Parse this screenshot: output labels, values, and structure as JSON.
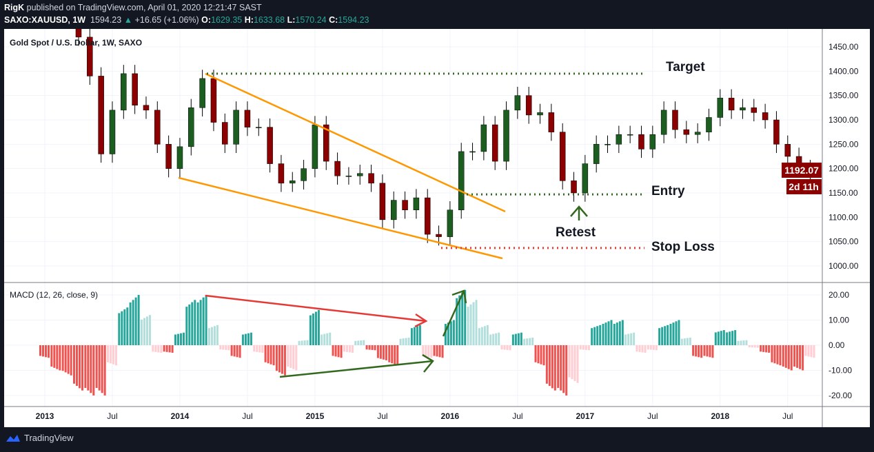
{
  "header": {
    "author": "RigK",
    "published": "published on TradingView.com, April 01, 2020 12:21:47 SAST",
    "symbol": "SAXO:XAUUSD, 1W",
    "last": "1594.23",
    "change": "+16.65 (+1.06%)",
    "o_label": "O:",
    "o": "1629.35",
    "h_label": "H:",
    "h": "1633.68",
    "l_label": "L:",
    "l": "1570.24",
    "c_label": "C:",
    "c": "1594.23"
  },
  "footer": {
    "brand": "TradingView"
  },
  "colors": {
    "up": "#26a69a",
    "down": "#ef5350",
    "candle_up": "#1b5e20",
    "candle_down": "#8b0000",
    "trend": "#ff9800",
    "level": "#33691e",
    "stop": "#e53935",
    "price_badge": "#8b0000"
  },
  "chart_data": [
    {
      "type": "candlestick",
      "title": "Gold Spot / U.S. Dollar, 1W, SAXO",
      "x_ticks": [
        "2013",
        "Jul",
        "2014",
        "Jul",
        "2015",
        "Jul",
        "2016",
        "Jul",
        "2017",
        "Jul",
        "2018",
        "Jul"
      ],
      "y_ticks": [
        "1450.00",
        "1400.00",
        "1350.00",
        "1300.00",
        "1250.00",
        "1200.00",
        "1150.00",
        "1100.00",
        "1050.00",
        "1000.00"
      ],
      "ylim": [
        985,
        1480
      ],
      "start": "2013-01",
      "period": "month",
      "close": [
        1660,
        1580,
        1595,
        1470,
        1390,
        1230,
        1320,
        1395,
        1330,
        1320,
        1250,
        1200,
        1245,
        1325,
        1385,
        1295,
        1250,
        1320,
        1285,
        1285,
        1210,
        1170,
        1175,
        1200,
        1290,
        1215,
        1185,
        1185,
        1190,
        1170,
        1095,
        1135,
        1115,
        1140,
        1065,
        1060,
        1115,
        1235,
        1235,
        1290,
        1215,
        1320,
        1350,
        1310,
        1315,
        1275,
        1175,
        1150,
        1210,
        1250,
        1250,
        1270,
        1270,
        1240,
        1270,
        1320,
        1280,
        1270,
        1275,
        1305,
        1345,
        1320,
        1325,
        1315,
        1300,
        1250,
        1225,
        1200,
        1192
      ],
      "last_price": "1192.07",
      "countdown": "2d 11h",
      "annotations": {
        "target": {
          "label": "Target",
          "price": 1395
        },
        "entry": {
          "label": "Entry",
          "price": 1147
        },
        "stop": {
          "label": "Stop Loss",
          "price": 1037
        },
        "retest": {
          "label": "Retest"
        }
      }
    },
    {
      "type": "bar",
      "title": "MACD (12, 26, close, 9)",
      "y_ticks": [
        "20.00",
        "10.00",
        "0.00",
        "-10.00",
        "-20.00"
      ],
      "ylim": [
        -24,
        24
      ],
      "histogram": [
        -5,
        -10,
        -12,
        -18,
        -20,
        -20,
        -8,
        15,
        20,
        12,
        -3,
        -3,
        5,
        18,
        20,
        8,
        -2,
        -5,
        5,
        -3,
        -8,
        -12,
        -10,
        2,
        14,
        5,
        -5,
        -3,
        2,
        -2,
        -6,
        -8,
        3,
        8,
        -5,
        -5,
        10,
        22,
        18,
        8,
        5,
        -2,
        5,
        3,
        -8,
        -18,
        -20,
        -15,
        -2,
        8,
        10,
        10,
        5,
        -3,
        -2,
        8,
        10,
        3,
        -5,
        -5,
        6,
        6,
        2,
        -1,
        -3,
        -8,
        -10,
        -10,
        -5
      ]
    }
  ]
}
